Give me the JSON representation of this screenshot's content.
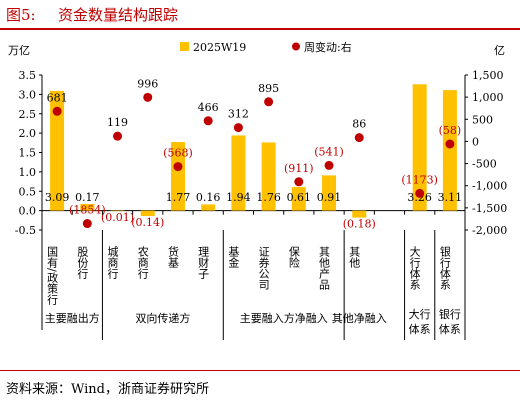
{
  "title": {
    "fig": "图5:",
    "text": "资金数量结构跟踪"
  },
  "source": "资料来源：Wind，浙商证券研究所",
  "chart_data": {
    "type": "bar",
    "left_unit": "万亿",
    "right_unit": "亿",
    "left_axis": {
      "ylim": [
        -0.5,
        3.5
      ],
      "ticks": [
        "-0.5",
        "0.0",
        "0.5",
        "1.0",
        "1.5",
        "2.0",
        "2.5",
        "3.0",
        "3.5"
      ]
    },
    "right_axis": {
      "ylim": [
        -2000,
        1500
      ],
      "ticks": [
        "-2,000",
        "-1,500",
        "-1,000",
        "-500",
        "0",
        "500",
        "1,000",
        "1,500"
      ]
    },
    "categories": [
      "国有/政策行",
      "股份行",
      "城商行",
      "农商行",
      "货基",
      "理财子",
      "基金",
      "证券公司",
      "保险",
      "其他产品",
      "其他",
      "",
      "大行体系",
      "银行体系"
    ],
    "series": [
      {
        "name": "2025W19",
        "axis": "left",
        "color": "#ffc000",
        "values": [
          3.09,
          0.17,
          -0.01,
          -0.14,
          1.77,
          0.16,
          1.94,
          1.76,
          0.61,
          0.91,
          -0.18,
          null,
          3.26,
          3.11
        ],
        "labels": [
          "3.09",
          "0.17",
          "(0.01)",
          "(0.14)",
          "1.77",
          "0.16",
          "1.94",
          "1.76",
          "0.61",
          "0.91",
          "(0.18)",
          "",
          "3.26",
          "3.11"
        ]
      },
      {
        "name": "周变动:右",
        "axis": "right",
        "color": "#c00000",
        "values": [
          681,
          -1854,
          119,
          996,
          -568,
          466,
          312,
          895,
          -911,
          -541,
          86,
          null,
          -1173,
          -58
        ],
        "labels": [
          "681",
          "(1854)",
          "119",
          "996",
          "(568)",
          "466",
          "312",
          "895",
          "(911)",
          "(541)",
          "86",
          "",
          "(1173)",
          "(58)"
        ]
      }
    ],
    "groups": [
      {
        "label": "主要融出方"
      },
      {
        "label": "双向传递方"
      },
      {
        "label": "主要融入方净融入"
      },
      {
        "label": "其他净融入"
      },
      {
        "label": "大行\n体系"
      },
      {
        "label": "银行\n体系"
      }
    ],
    "legend_position": "top-center"
  }
}
